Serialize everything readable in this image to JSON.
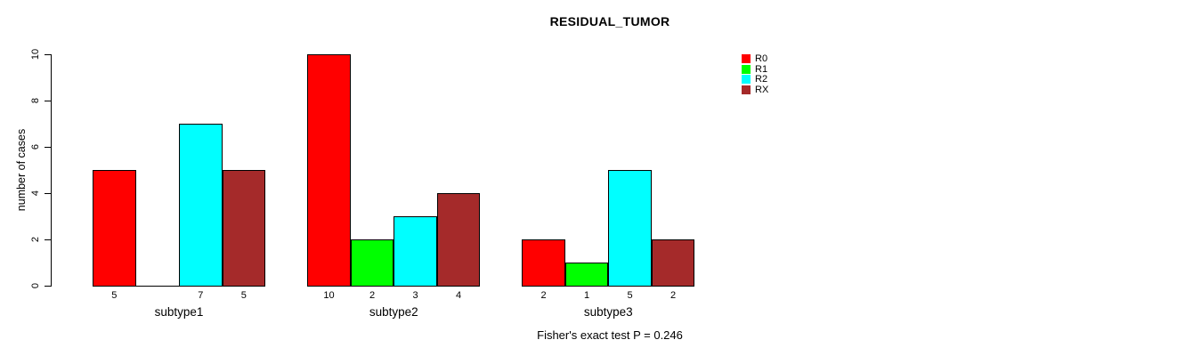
{
  "chart_data": {
    "type": "bar",
    "title": "RESIDUAL_TUMOR",
    "xlabel": "",
    "ylabel": "number of cases",
    "annotation": "Fisher's exact test P = 0.246",
    "categories": [
      "subtype1",
      "subtype2",
      "subtype3"
    ],
    "series": [
      {
        "name": "R0",
        "color": "#ff0000",
        "values": [
          5,
          10,
          2
        ]
      },
      {
        "name": "R1",
        "color": "#00ff00",
        "values": [
          0,
          2,
          1
        ]
      },
      {
        "name": "R2",
        "color": "#00ffff",
        "values": [
          7,
          3,
          5
        ]
      },
      {
        "name": "RX",
        "color": "#a52a2a",
        "values": [
          5,
          4,
          2
        ]
      }
    ],
    "bar_labels": [
      [
        "5",
        "",
        "7",
        "5"
      ],
      [
        "10",
        "2",
        "3",
        "4"
      ],
      [
        "2",
        "1",
        "5",
        "2"
      ]
    ],
    "yticks": [
      0,
      2,
      4,
      6,
      8,
      10
    ],
    "ylim": [
      0,
      10
    ],
    "grid": false,
    "legend_position": "right-inside-top",
    "colors": {
      "axis": "#000000",
      "bar_border": "#000000",
      "background": "#ffffff",
      "text": "#000000"
    }
  }
}
